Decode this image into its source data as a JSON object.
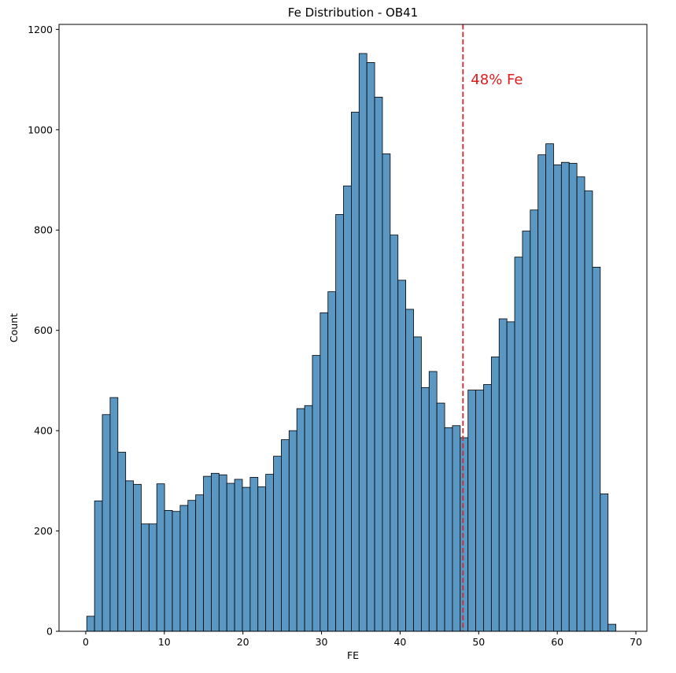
{
  "chart_data": {
    "type": "bar",
    "title": "Fe Distribution - OB41",
    "xlabel": "FE",
    "ylabel": "Count",
    "xlim": [
      -3.4,
      71.4
    ],
    "ylim": [
      0,
      1210
    ],
    "x_ticks": [
      0,
      10,
      20,
      30,
      40,
      50,
      60,
      70
    ],
    "y_ticks": [
      0,
      200,
      400,
      600,
      800,
      1000,
      1200
    ],
    "bin_start": 0.13,
    "bin_width": 0.99,
    "counts": [
      30,
      260,
      432,
      466,
      357,
      300,
      293,
      214,
      214,
      294,
      241,
      239,
      251,
      261,
      272,
      309,
      315,
      312,
      295,
      303,
      287,
      307,
      288,
      313,
      349,
      382,
      400,
      444,
      450,
      550,
      635,
      677,
      831,
      888,
      1035,
      1152,
      1134,
      1065,
      952,
      790,
      700,
      642,
      587,
      486,
      518,
      455,
      406,
      410,
      386,
      481,
      481,
      492,
      547,
      623,
      617,
      746,
      798,
      840,
      950,
      972,
      930,
      935,
      933,
      906,
      878,
      726,
      274,
      14
    ],
    "bar_color": "#5a97c2",
    "edge_color": "#000000",
    "grid": false,
    "vline": {
      "x": 48,
      "color": "#d62728",
      "style": "dashed"
    },
    "annotation": {
      "text": "48% Fe",
      "x": 49,
      "y": 1100,
      "color": "#e31a1c"
    }
  }
}
